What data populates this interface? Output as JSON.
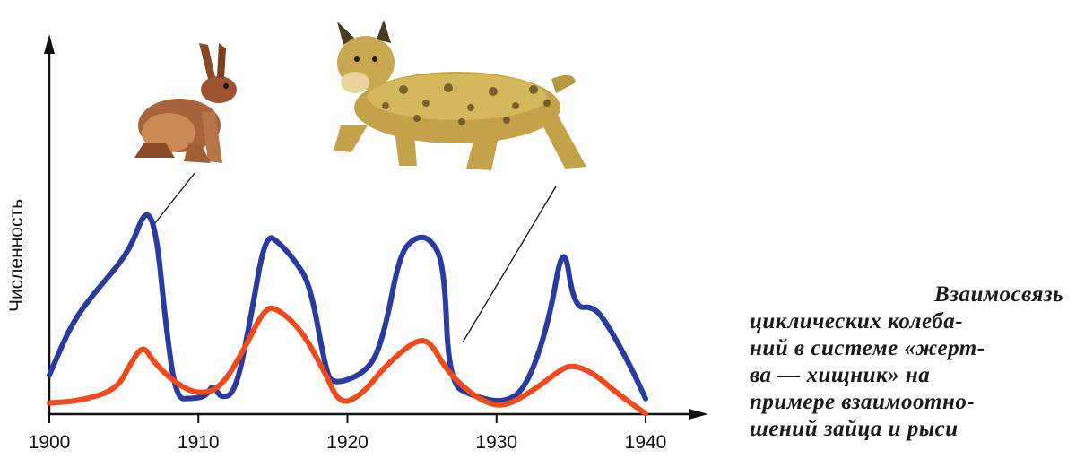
{
  "chart_data": {
    "type": "line",
    "title": "",
    "xlabel": "",
    "ylabel": "Численность",
    "x_ticks": [
      1900,
      1910,
      1920,
      1930,
      1940
    ],
    "xlim": [
      1900,
      1942
    ],
    "ylim": [
      0,
      100
    ],
    "grid": false,
    "legend": "none",
    "series": [
      {
        "color": "#2a3a9e",
        "points": [
          [
            1900,
            14
          ],
          [
            1901.5,
            38
          ],
          [
            1903,
            52
          ],
          [
            1904.5,
            64
          ],
          [
            1905.5,
            74
          ],
          [
            1906.5,
            92
          ],
          [
            1907.2,
            80
          ],
          [
            1907.8,
            38
          ],
          [
            1908.5,
            3
          ],
          [
            1909.5,
            3
          ],
          [
            1910.5,
            4
          ],
          [
            1911,
            10
          ],
          [
            1911.5,
            3
          ],
          [
            1912.5,
            6
          ],
          [
            1913.5,
            40
          ],
          [
            1914.5,
            80
          ],
          [
            1915.5,
            75
          ],
          [
            1916.5,
            67
          ],
          [
            1917.5,
            56
          ],
          [
            1918.5,
            18
          ],
          [
            1919,
            9
          ],
          [
            1921.5,
            16
          ],
          [
            1922.5,
            34
          ],
          [
            1923.5,
            70
          ],
          [
            1924.5,
            78
          ],
          [
            1925.5,
            78
          ],
          [
            1926.5,
            66
          ],
          [
            1926.8,
            10
          ],
          [
            1928.5,
            4
          ],
          [
            1930.5,
            1
          ],
          [
            1932,
            8
          ],
          [
            1933.5,
            38
          ],
          [
            1934.5,
            78
          ],
          [
            1935.2,
            45
          ],
          [
            1936.5,
            46
          ],
          [
            1937.5,
            37
          ],
          [
            1939,
            18
          ],
          [
            1940,
            3
          ]
        ]
      },
      {
        "color": "#f04a1c",
        "points": [
          [
            1900,
            1
          ],
          [
            1902,
            2
          ],
          [
            1904.5,
            7
          ],
          [
            1905.5,
            20
          ],
          [
            1906.3,
            28
          ],
          [
            1907,
            20
          ],
          [
            1908.5,
            10
          ],
          [
            1910,
            5
          ],
          [
            1911.5,
            8
          ],
          [
            1913,
            25
          ],
          [
            1914.5,
            46
          ],
          [
            1915.5,
            44
          ],
          [
            1917,
            34
          ],
          [
            1918.5,
            15
          ],
          [
            1919.5,
            0
          ],
          [
            1921,
            5
          ],
          [
            1922.5,
            18
          ],
          [
            1924.5,
            30
          ],
          [
            1925.5,
            30
          ],
          [
            1926.5,
            18
          ],
          [
            1927.5,
            10
          ],
          [
            1929,
            2
          ],
          [
            1930.5,
            -1
          ],
          [
            1932.5,
            7
          ],
          [
            1934,
            15
          ],
          [
            1935,
            19
          ],
          [
            1936.5,
            15
          ],
          [
            1938,
            6
          ],
          [
            1940,
            -4
          ]
        ]
      }
    ]
  },
  "caption": {
    "lines": [
      "Взаимосвязь",
      "циклических колеба-",
      "ний в системе «жерт-",
      "ва — хищник» на",
      "примере взаимоотно-",
      "шений зайца и рыси"
    ]
  },
  "illustrations": {
    "prey": "hare-illustration",
    "predator": "lynx-illustration",
    "axis_color": "#111111"
  }
}
